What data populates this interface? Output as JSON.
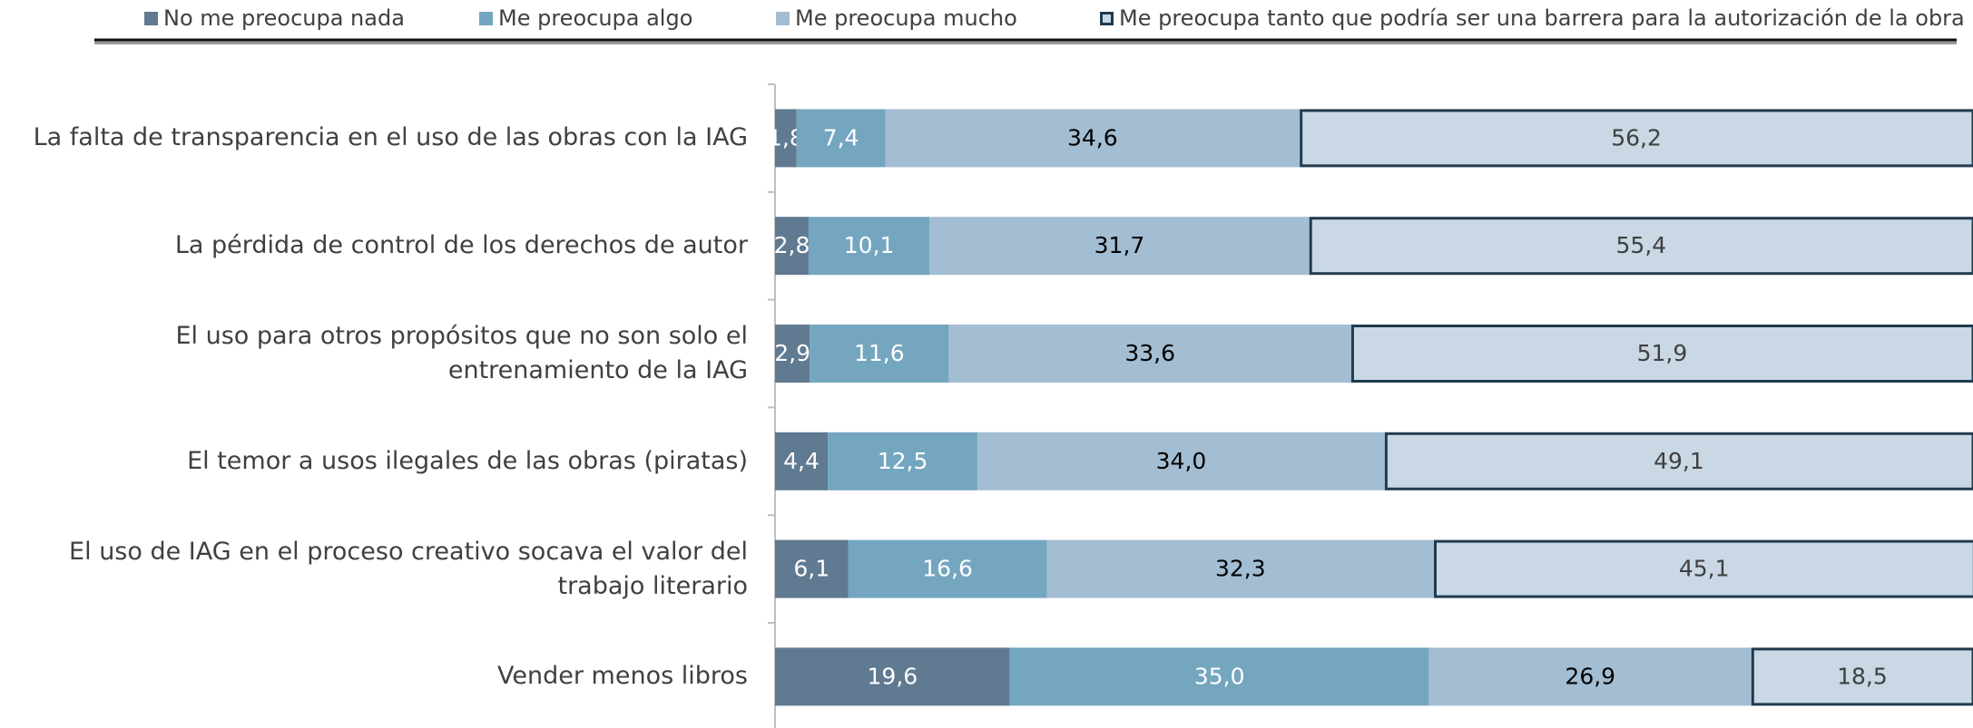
{
  "chart_data": {
    "type": "stacked_barh",
    "categories": [
      "La falta de transparencia en el uso de las obras con la IAG",
      "La pérdida de control de los derechos de autor",
      "El uso para otros propósitos que no son solo el entrenamiento de la IAG",
      "El temor a usos ilegales de las obras (piratas)",
      "El uso de IAG en el proceso creativo socava el valor del trabajo literario",
      "Vender menos libros"
    ],
    "series": [
      {
        "name": "No me preocupa nada",
        "color": "#5f7a91",
        "label_color": "#ffffff",
        "values": [
          1.8,
          2.8,
          2.9,
          4.4,
          6.1,
          19.6
        ],
        "value_labels": [
          "1,8",
          "2,8",
          "2,9",
          "4,4",
          "6,1",
          "19,6"
        ]
      },
      {
        "name": "Me preocupa algo",
        "color": "#74a6c0",
        "label_color": "#ffffff",
        "values": [
          7.4,
          10.1,
          11.6,
          12.5,
          16.6,
          35.0
        ],
        "value_labels": [
          "7,4",
          "10,1",
          "11,6",
          "12,5",
          "16,6",
          "35,0"
        ]
      },
      {
        "name": "Me preocupa mucho",
        "color": "#a3bdd3",
        "label_color": "#000000",
        "values": [
          34.6,
          31.7,
          33.6,
          34.0,
          32.3,
          26.9
        ],
        "value_labels": [
          "34,6",
          "31,7",
          "33,6",
          "34,0",
          "32,3",
          "26,9"
        ]
      },
      {
        "name": "Me preocupa tanto que podría ser una barrera para la autorización de la obra",
        "color": "#c9d8e4",
        "edgecolor": "#1f3b4f",
        "label_color": "#404040",
        "values": [
          56.2,
          55.4,
          51.9,
          49.1,
          45.1,
          18.5
        ],
        "value_labels": [
          "56,2",
          "55,4",
          "51,9",
          "49,1",
          "45,1",
          "18,5"
        ]
      }
    ],
    "xlim": [
      0,
      100
    ],
    "legend": "top"
  }
}
